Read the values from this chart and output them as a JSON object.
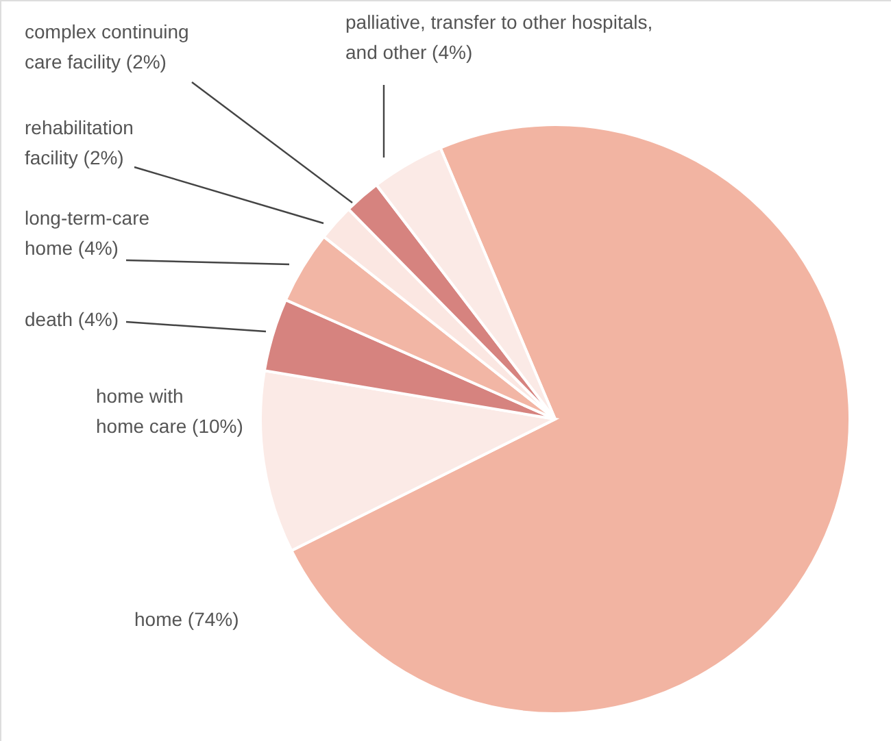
{
  "chart_data": {
    "type": "pie",
    "categories": [
      "home",
      "home with home care",
      "death",
      "long-term-care home",
      "rehabilitation facility",
      "complex continuing care facility",
      "palliative, transfer to other hospitals, and other"
    ],
    "values": [
      74,
      10,
      4,
      4,
      2,
      2,
      4
    ],
    "value_labels": [
      "(74%)",
      "(10%)",
      "(4%)",
      "(4%)",
      "(2%)",
      "(2%)",
      "(4%)"
    ],
    "colors": [
      "#f2b4a2",
      "#fbeae6",
      "#d6837f",
      "#f2b6a5",
      "#fbe7e2",
      "#d6837f",
      "#fbeae6"
    ]
  }
}
